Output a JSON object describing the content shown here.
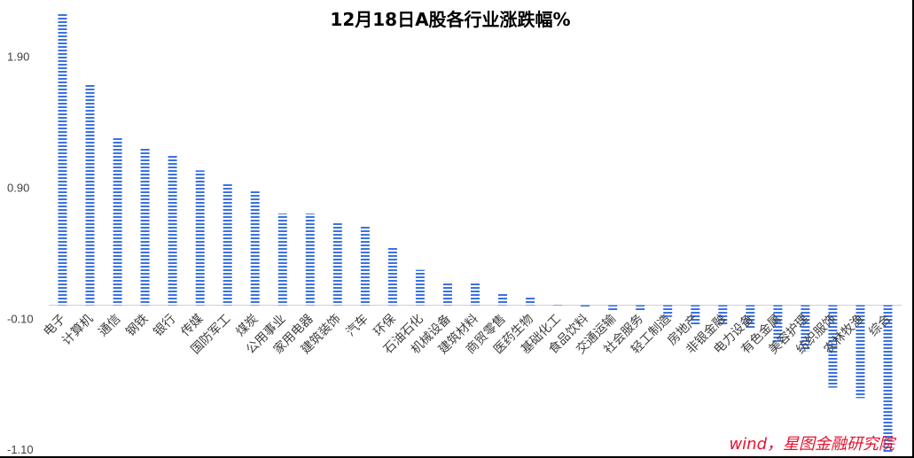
{
  "chart_data": {
    "type": "bar",
    "title": "12月18日A股各行业涨跌幅%",
    "xlabel": "",
    "ylabel": "",
    "ylim": [
      -1.1,
      2.2
    ],
    "yticks": [
      "1.90",
      "0.90",
      "-0.10",
      "-1.10"
    ],
    "ytick_values": [
      1.9,
      0.9,
      -0.1,
      -1.1
    ],
    "grid": false,
    "legend": "none",
    "categories": [
      "电子",
      "计算机",
      "通信",
      "钢铁",
      "银行",
      "传媒",
      "国防军工",
      "煤炭",
      "公用事业",
      "家用电器",
      "建筑装饰",
      "汽车",
      "环保",
      "石油石化",
      "机械设备",
      "建筑材料",
      "商贸零售",
      "医药生物",
      "基础化工",
      "食品饮料",
      "交通运输",
      "社会服务",
      "轻工制造",
      "房地产",
      "非银金融",
      "电力设备",
      "有色金属",
      "美容护理",
      "纺织服饰",
      "农林牧渔",
      "综合"
    ],
    "values": [
      2.23,
      1.69,
      1.28,
      1.2,
      1.14,
      1.03,
      0.93,
      0.87,
      0.7,
      0.7,
      0.64,
      0.61,
      0.45,
      0.27,
      0.18,
      0.18,
      0.09,
      0.06,
      0.01,
      -0.02,
      -0.05,
      -0.05,
      -0.09,
      -0.15,
      -0.15,
      -0.18,
      -0.28,
      -0.35,
      -0.63,
      -0.71,
      -1.12
    ],
    "bar_color": "#3b72e3"
  },
  "credit": "wind，星图金融研究院"
}
